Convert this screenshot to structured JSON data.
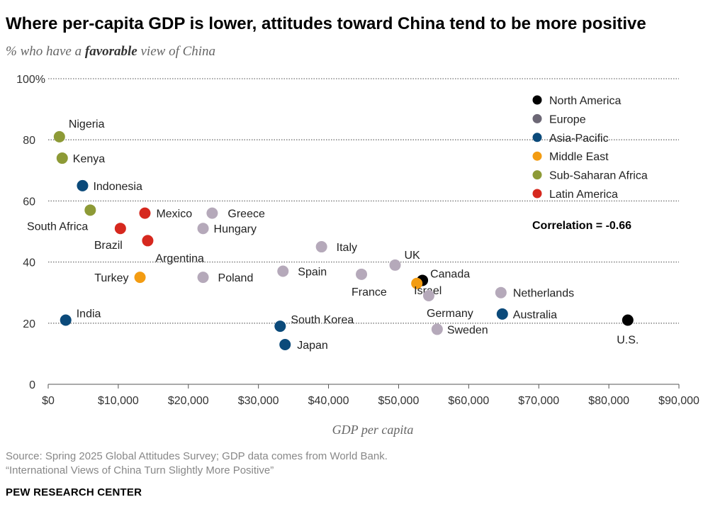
{
  "header": {
    "title": "Where per-capita GDP is lower, attitudes toward China tend to be more positive",
    "subtitle_pre": "% who have a ",
    "subtitle_bold": "favorable",
    "subtitle_post": " view of China"
  },
  "footer": {
    "source": "Source: Spring 2025 Global Attitudes Survey; GDP data comes from World Bank.",
    "report": "“International Views of China Turn Slightly More Positive”",
    "org": "PEW RESEARCH CENTER"
  },
  "chart_data": {
    "type": "scatter",
    "title": "Where per-capita GDP is lower, attitudes toward China tend to be more positive",
    "xlabel": "GDP per capita",
    "ylabel": "% who have a favorable view of China",
    "xlim": [
      0,
      90000
    ],
    "ylim": [
      0,
      100
    ],
    "x_ticks": [
      0,
      10000,
      20000,
      30000,
      40000,
      50000,
      60000,
      70000,
      80000,
      90000
    ],
    "x_tick_labels": [
      "$0",
      "$10,000",
      "$20,000",
      "$30,000",
      "$40,000",
      "$50,000",
      "$60,000",
      "$70,000",
      "$80,000",
      "$90,000"
    ],
    "y_ticks": [
      0,
      20,
      40,
      60,
      80,
      100
    ],
    "y_tick_labels": [
      "0",
      "20",
      "40",
      "60",
      "80",
      "100%"
    ],
    "grid": true,
    "legend_position": "top-right",
    "annotation": "Correlation = -0.66",
    "regions": [
      {
        "name": "North America",
        "color": "#000000"
      },
      {
        "name": "Europe",
        "color": "#b5a9ba"
      },
      {
        "name": "Asia-Pacific",
        "color": "#0b4a7a"
      },
      {
        "name": "Middle East",
        "color": "#f39c12"
      },
      {
        "name": "Sub-Saharan Africa",
        "color": "#8d9a36"
      },
      {
        "name": "Latin America",
        "color": "#d6281e"
      }
    ],
    "legend_colors": {
      "North America": "#000000",
      "Europe": "#6c6775",
      "Asia-Pacific": "#0b4a7a",
      "Middle East": "#f39c12",
      "Sub-Saharan Africa": "#8d9a36",
      "Latin America": "#d6281e"
    },
    "points": [
      {
        "country": "Nigeria",
        "region": "Sub-Saharan Africa",
        "x": 1600,
        "y": 81
      },
      {
        "country": "Kenya",
        "region": "Sub-Saharan Africa",
        "x": 2000,
        "y": 74
      },
      {
        "country": "Indonesia",
        "region": "Asia-Pacific",
        "x": 4900,
        "y": 65
      },
      {
        "country": "South Africa",
        "region": "Sub-Saharan Africa",
        "x": 6000,
        "y": 57
      },
      {
        "country": "Mexico",
        "region": "Latin America",
        "x": 13800,
        "y": 56
      },
      {
        "country": "Greece",
        "region": "Europe",
        "x": 23400,
        "y": 56
      },
      {
        "country": "Brazil",
        "region": "Latin America",
        "x": 10300,
        "y": 51
      },
      {
        "country": "Hungary",
        "region": "Europe",
        "x": 22100,
        "y": 51
      },
      {
        "country": "Argentina",
        "region": "Latin America",
        "x": 14200,
        "y": 47
      },
      {
        "country": "Italy",
        "region": "Europe",
        "x": 39000,
        "y": 45
      },
      {
        "country": "UK",
        "region": "Europe",
        "x": 49500,
        "y": 39
      },
      {
        "country": "Spain",
        "region": "Europe",
        "x": 33500,
        "y": 37
      },
      {
        "country": "France",
        "region": "Europe",
        "x": 44700,
        "y": 36
      },
      {
        "country": "Turkey",
        "region": "Middle East",
        "x": 13100,
        "y": 35
      },
      {
        "country": "Poland",
        "region": "Europe",
        "x": 22100,
        "y": 35
      },
      {
        "country": "Canada",
        "region": "North America",
        "x": 53400,
        "y": 34
      },
      {
        "country": "Israel",
        "region": "Middle East",
        "x": 52600,
        "y": 33
      },
      {
        "country": "Germany",
        "region": "Europe",
        "x": 54300,
        "y": 29
      },
      {
        "country": "Netherlands",
        "region": "Europe",
        "x": 64600,
        "y": 30
      },
      {
        "country": "Australia",
        "region": "Asia-Pacific",
        "x": 64800,
        "y": 23
      },
      {
        "country": "India",
        "region": "Asia-Pacific",
        "x": 2500,
        "y": 21
      },
      {
        "country": "South Korea",
        "region": "Asia-Pacific",
        "x": 33100,
        "y": 19
      },
      {
        "country": "Sweden",
        "region": "Europe",
        "x": 55500,
        "y": 18
      },
      {
        "country": "Japan",
        "region": "Asia-Pacific",
        "x": 33800,
        "y": 13
      },
      {
        "country": "U.S.",
        "region": "North America",
        "x": 82700,
        "y": 21
      }
    ]
  }
}
